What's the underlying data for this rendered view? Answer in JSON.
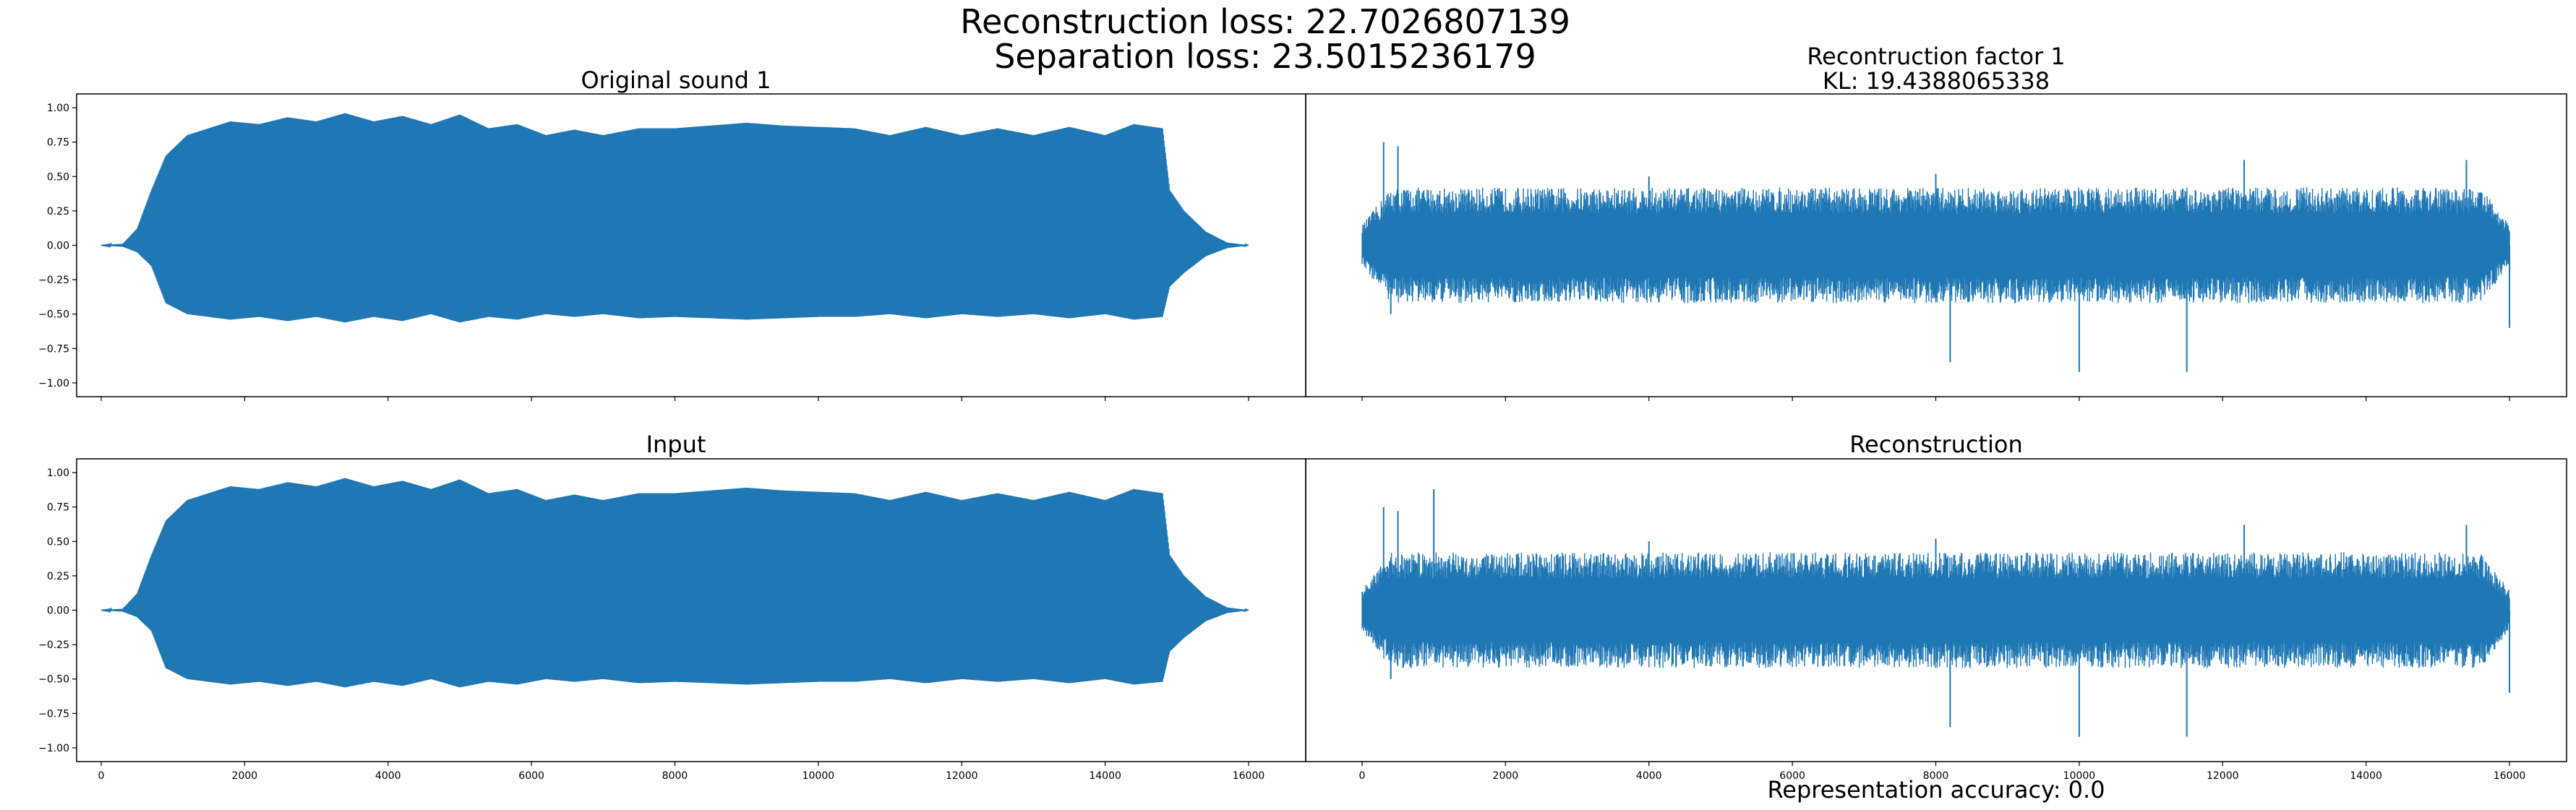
{
  "figure": {
    "title_line1": "Reconstruction loss: 22.7026807139",
    "title_line2": "Separation loss: 23.5015236179",
    "xlabel": "Representation accuracy: 0.0",
    "line_color": "#1f77b4"
  },
  "chart_data": [
    {
      "type": "line",
      "title": "Original sound 1",
      "x_range": [
        0,
        16000
      ],
      "ylim": [
        -1.1,
        1.1
      ],
      "yticks": [
        -1.0,
        -0.75,
        -0.5,
        -0.25,
        0.0,
        0.25,
        0.5,
        0.75,
        1.0
      ],
      "ytick_labels": [
        "−1.00",
        "−0.75",
        "−0.50",
        "−0.25",
        "0.00",
        "0.25",
        "0.50",
        "0.75",
        "1.00"
      ],
      "envelope_x": [
        0,
        300,
        500,
        700,
        900,
        1200,
        1500,
        1800,
        2200,
        2600,
        3000,
        3400,
        3800,
        4200,
        4600,
        5000,
        5400,
        5800,
        6200,
        6600,
        7000,
        7500,
        8000,
        8500,
        9000,
        9500,
        10000,
        10500,
        11000,
        11500,
        12000,
        12500,
        13000,
        13500,
        14000,
        14400,
        14800,
        14900,
        15100,
        15400,
        15700,
        16000
      ],
      "envelope_upper": [
        0.0,
        0.01,
        0.12,
        0.4,
        0.65,
        0.8,
        0.85,
        0.9,
        0.88,
        0.93,
        0.9,
        0.96,
        0.9,
        0.94,
        0.88,
        0.95,
        0.85,
        0.88,
        0.8,
        0.84,
        0.8,
        0.85,
        0.85,
        0.87,
        0.89,
        0.87,
        0.86,
        0.85,
        0.8,
        0.86,
        0.8,
        0.85,
        0.8,
        0.86,
        0.8,
        0.88,
        0.85,
        0.4,
        0.25,
        0.1,
        0.02,
        0.0
      ],
      "envelope_lower": [
        0.0,
        -0.01,
        -0.05,
        -0.15,
        -0.42,
        -0.5,
        -0.52,
        -0.54,
        -0.52,
        -0.55,
        -0.52,
        -0.56,
        -0.52,
        -0.55,
        -0.5,
        -0.56,
        -0.52,
        -0.54,
        -0.5,
        -0.52,
        -0.5,
        -0.53,
        -0.52,
        -0.53,
        -0.54,
        -0.53,
        -0.52,
        -0.52,
        -0.5,
        -0.53,
        -0.5,
        -0.52,
        -0.5,
        -0.53,
        -0.5,
        -0.54,
        -0.52,
        -0.3,
        -0.2,
        -0.08,
        -0.02,
        0.0
      ]
    },
    {
      "type": "line",
      "title_line1": "Recontruction factor 1",
      "title_line2": "KL: 19.4388065338",
      "x_range": [
        0,
        16000
      ],
      "ylim": [
        -1.1,
        1.1
      ],
      "body_amplitude": [
        -0.42,
        0.42
      ],
      "spikes": [
        {
          "x": 300,
          "y": 0.75
        },
        {
          "x": 400,
          "y": -0.5
        },
        {
          "x": 500,
          "y": 0.72
        },
        {
          "x": 1000,
          "y": -0.38
        },
        {
          "x": 4000,
          "y": 0.5
        },
        {
          "x": 8000,
          "y": 0.52
        },
        {
          "x": 8200,
          "y": -0.85
        },
        {
          "x": 10000,
          "y": -0.92
        },
        {
          "x": 11500,
          "y": -0.92
        },
        {
          "x": 12300,
          "y": 0.62
        },
        {
          "x": 15400,
          "y": 0.62
        },
        {
          "x": 16000,
          "y": -0.6
        }
      ]
    },
    {
      "type": "line",
      "title": "Input",
      "x_range": [
        0,
        16000
      ],
      "ylim": [
        -1.1,
        1.1
      ],
      "yticks": [
        -1.0,
        -0.75,
        -0.5,
        -0.25,
        0.0,
        0.25,
        0.5,
        0.75,
        1.0
      ],
      "ytick_labels": [
        "−1.00",
        "−0.75",
        "−0.50",
        "−0.25",
        "0.00",
        "0.25",
        "0.50",
        "0.75",
        "1.00"
      ],
      "xticks": [
        0,
        2000,
        4000,
        6000,
        8000,
        10000,
        12000,
        14000,
        16000
      ],
      "xtick_labels": [
        "0",
        "2000",
        "4000",
        "6000",
        "8000",
        "10000",
        "12000",
        "14000",
        "16000"
      ],
      "same_as_panel": 0
    },
    {
      "type": "line",
      "title": "Reconstruction",
      "x_range": [
        0,
        16000
      ],
      "ylim": [
        -1.1,
        1.1
      ],
      "xticks": [
        0,
        2000,
        4000,
        6000,
        8000,
        10000,
        12000,
        14000,
        16000
      ],
      "xtick_labels": [
        "0",
        "2000",
        "4000",
        "6000",
        "8000",
        "10000",
        "12000",
        "14000",
        "16000"
      ],
      "body_amplitude": [
        -0.42,
        0.42
      ],
      "spikes": [
        {
          "x": 300,
          "y": 0.75
        },
        {
          "x": 400,
          "y": -0.5
        },
        {
          "x": 500,
          "y": 0.72
        },
        {
          "x": 1000,
          "y": 0.88
        },
        {
          "x": 4000,
          "y": 0.5
        },
        {
          "x": 8000,
          "y": 0.52
        },
        {
          "x": 8200,
          "y": -0.85
        },
        {
          "x": 10000,
          "y": -0.92
        },
        {
          "x": 11500,
          "y": -0.92
        },
        {
          "x": 12300,
          "y": 0.62
        },
        {
          "x": 15400,
          "y": 0.62
        },
        {
          "x": 16000,
          "y": -0.6
        }
      ]
    }
  ]
}
